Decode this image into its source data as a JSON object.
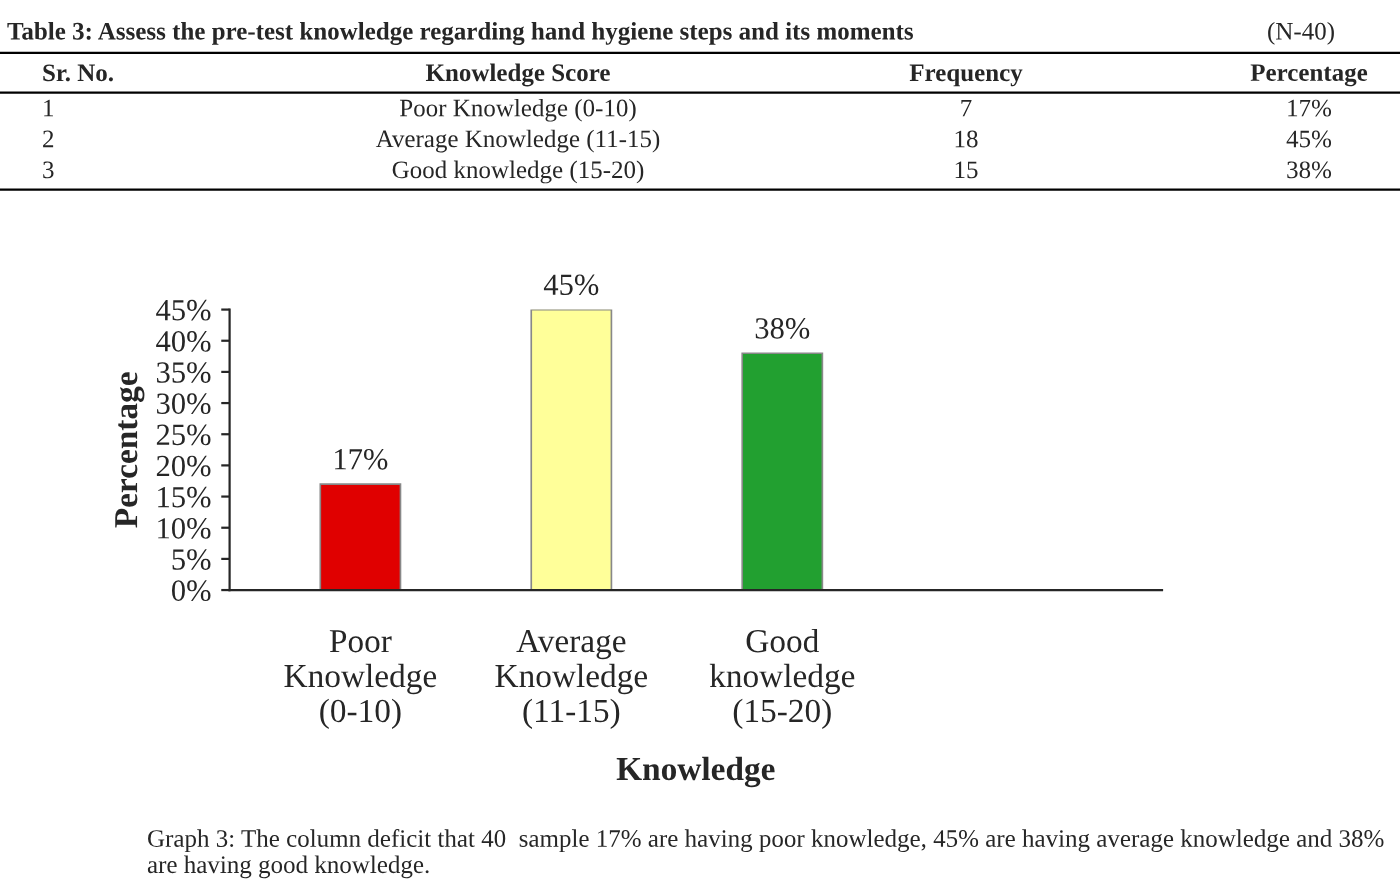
{
  "chart_data": {
    "type": "bar",
    "title": "Table 3: Assess the pre-test knowledge regarding hand hygiene steps and its moments",
    "categories": [
      "Poor\nKnowledge\n(0-10)",
      "Average\nKnowledge\n(11-15)",
      "Good\nknowledge\n(15-20)"
    ],
    "values": [
      17,
      45,
      38
    ],
    "colors": [
      "#e00000",
      "#ffff99",
      "#22a030"
    ],
    "value_labels": [
      "17%",
      "45%",
      "38%"
    ],
    "xlabel": "Knowledge",
    "ylabel": "Percentage",
    "ylim": [
      0,
      45
    ],
    "yticks": [
      {
        "value": 0,
        "label": "0%"
      },
      {
        "value": 5,
        "label": "5%"
      },
      {
        "value": 10,
        "label": "10%"
      },
      {
        "value": 15,
        "label": "15%"
      },
      {
        "value": 20,
        "label": "20%"
      },
      {
        "value": 25,
        "label": "25%"
      },
      {
        "value": 30,
        "label": "30%"
      },
      {
        "value": 35,
        "label": "35%"
      },
      {
        "value": 40,
        "label": "40%"
      },
      {
        "value": 45,
        "label": "45%"
      }
    ],
    "grid": false,
    "legend": false,
    "annotations": [
      "(N-40)",
      "Sr. No.",
      "Knowledge Score",
      "Frequency",
      "Percentage",
      "1",
      "Poor Knowledge (0-10)",
      "7",
      "17%",
      "2",
      "Average Knowledge (11-15)",
      "18",
      "45%",
      "3",
      "Good knowledge (15-20)",
      "15",
      "38%",
      "Graph 3: The column deficit that 40  sample 17% are having poor knowledge, 45% are having average knowledge and 38% are having good knowledge."
    ]
  }
}
